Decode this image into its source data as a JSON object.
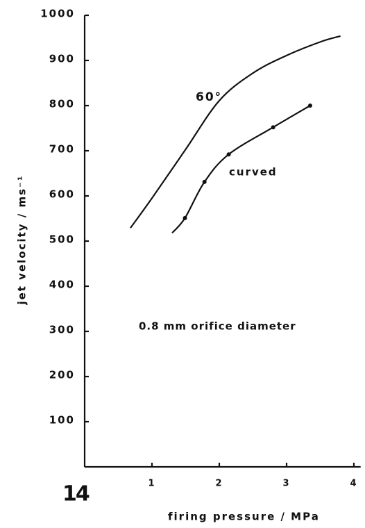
{
  "chart_data": {
    "type": "line",
    "figure_label": "14",
    "xlabel": "firing pressure / MPa",
    "ylabel": "jet velocity / ms⁻¹",
    "annotation": "0.8 mm orifice diameter",
    "xlim": [
      0,
      4.1
    ],
    "xticks": [
      1,
      2,
      3,
      4
    ],
    "ylim": [
      0,
      1000
    ],
    "yticks": [
      100,
      200,
      300,
      400,
      500,
      600,
      700,
      800,
      900,
      1000
    ],
    "series": [
      {
        "name": "60°",
        "color": "#111111",
        "x": [
          0.68,
          1.0,
          1.5,
          2.0,
          2.5,
          3.0,
          3.5,
          3.8
        ],
        "values": [
          529,
          595,
          703,
          811,
          872,
          911,
          941,
          954
        ]
      },
      {
        "name": "curved",
        "color": "#111111",
        "x": [
          1.3,
          1.49,
          1.78,
          2.14,
          2.8,
          3.35
        ],
        "values": [
          518,
          551,
          631,
          692,
          752,
          800
        ],
        "markers": {
          "x": [
            1.49,
            1.78,
            2.14,
            2.8,
            3.35
          ],
          "values": [
            551,
            631,
            692,
            752,
            800
          ]
        }
      }
    ]
  }
}
